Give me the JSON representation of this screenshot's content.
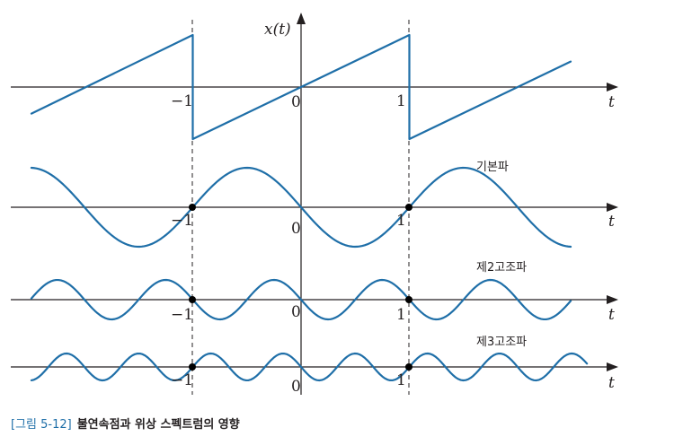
{
  "figure": {
    "panels": [
      {
        "key": "signal",
        "y_label": "x(t)",
        "t_label": "t",
        "tick_labels": [
          "−1",
          "0",
          "1"
        ],
        "name": ""
      },
      {
        "key": "fundamental",
        "t_label": "t",
        "tick_labels": [
          "−1",
          "0",
          "1"
        ],
        "name": "기본파"
      },
      {
        "key": "second",
        "t_label": "t",
        "tick_labels": [
          "−1",
          "0",
          "1"
        ],
        "name": "제2고조파"
      },
      {
        "key": "third",
        "t_label": "t",
        "tick_labels": [
          "−1",
          "0",
          "1"
        ],
        "name": "제3고조파"
      }
    ],
    "colors": {
      "wave": "#1f6fa8",
      "axis": "#231f20",
      "caption_number": "#1f6fa8"
    },
    "curves": {
      "sawtooth_period": 2,
      "t_range": [
        -2.5,
        2.5
      ],
      "fundamental_period": 2,
      "second_harmonic_period": 1,
      "third_harmonic_period": 0.6667
    }
  },
  "caption": {
    "number": "[그림 5-12]",
    "title": "불연속점과 위상 스펙트럼의 영향"
  }
}
